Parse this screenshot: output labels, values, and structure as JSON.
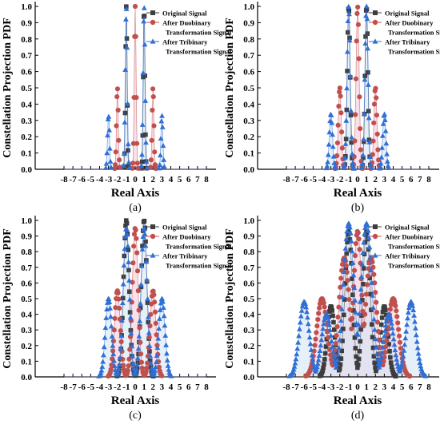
{
  "figure": {
    "panels": [
      "(a)",
      "(b)",
      "(c)",
      "(d)"
    ]
  },
  "styles": {
    "original": {
      "color": "#3d3d3d",
      "marker": "square"
    },
    "duobinary": {
      "color": "#c0504d",
      "marker": "circle",
      "band": "#f4c9d8"
    },
    "tribinary": {
      "color": "#2f6fd6",
      "marker": "triangle",
      "band": "#cfe4f4"
    },
    "axis": "#000000"
  },
  "chart_data": [
    {
      "panel": "(a)",
      "type": "scatter",
      "xlabel": "Real Axis",
      "ylabel": "Constellation Projection PDF",
      "xlim": [
        -8,
        8
      ],
      "ylim": [
        0,
        1.0
      ],
      "xticks": [
        "-8",
        "-7",
        "-6",
        "-5",
        "-4",
        "-3",
        "-2",
        "-1",
        "0",
        "1",
        "2",
        "3",
        "4",
        "5",
        "6",
        "7",
        "8"
      ],
      "yticks": [
        "0.0",
        "0.1",
        "0.2",
        "0.3",
        "0.4",
        "0.5",
        "0.6",
        "0.7",
        "0.8",
        "0.9",
        "1.0"
      ],
      "legend": {
        "position": "top-right",
        "entries": [
          "Original Signal",
          "After Duobinary",
          "Transformation Signal",
          "After Tribinary",
          "Transformation Signal"
        ]
      },
      "series": [
        {
          "name": "Original Signal",
          "style": "original",
          "peaks": [
            [
              -1,
              1.0,
              0.09
            ],
            [
              1,
              1.0,
              0.09
            ]
          ]
        },
        {
          "name": "After Duobinary Transformation Signal",
          "style": "duobinary",
          "peaks": [
            [
              -2,
              0.5,
              0.1
            ],
            [
              0,
              1.0,
              0.1
            ],
            [
              2,
              0.5,
              0.1
            ]
          ]
        },
        {
          "name": "After Tribinary Transformation Signal",
          "style": "tribinary",
          "peaks": [
            [
              -3,
              0.33,
              0.11
            ],
            [
              -1,
              1.0,
              0.11
            ],
            [
              1,
              1.0,
              0.11
            ],
            [
              3,
              0.33,
              0.11
            ]
          ]
        }
      ]
    },
    {
      "panel": "(b)",
      "type": "scatter",
      "xlabel": "Real Axis",
      "ylabel": "Constellation Projection PDF",
      "xlim": [
        -8,
        8
      ],
      "ylim": [
        0,
        1.0
      ],
      "xticks": [
        "-8",
        "-7",
        "-6",
        "-5",
        "-4",
        "-3",
        "-2",
        "-1",
        "0",
        "1",
        "2",
        "3",
        "4",
        "5",
        "6",
        "7",
        "8"
      ],
      "yticks": [
        "0.0",
        "0.1",
        "0.2",
        "0.3",
        "0.4",
        "0.5",
        "0.6",
        "0.7",
        "0.8",
        "0.9",
        "1.0"
      ],
      "legend": {
        "position": "top-right",
        "entries": [
          "Original Signal",
          "After Duobinary",
          "Transformation Signal",
          "After Tribinary",
          "Transformation Signal"
        ]
      },
      "series": [
        {
          "name": "Original Signal",
          "style": "original",
          "peaks": [
            [
              -1,
              1.0,
              0.16
            ],
            [
              1,
              1.0,
              0.16
            ]
          ]
        },
        {
          "name": "After Duobinary Transformation Signal",
          "style": "duobinary",
          "peaks": [
            [
              -2,
              0.5,
              0.17
            ],
            [
              0,
              1.0,
              0.17
            ],
            [
              2,
              0.5,
              0.17
            ]
          ]
        },
        {
          "name": "After Tribinary Transformation Signal",
          "style": "tribinary",
          "peaks": [
            [
              -3,
              0.34,
              0.18
            ],
            [
              -1,
              1.0,
              0.18
            ],
            [
              1,
              1.0,
              0.18
            ],
            [
              3,
              0.34,
              0.18
            ]
          ]
        }
      ]
    },
    {
      "panel": "(c)",
      "type": "scatter",
      "xlabel": "Real Axis",
      "ylabel": "Constellation Projection PDF",
      "xlim": [
        -8,
        8
      ],
      "ylim": [
        0,
        1.0
      ],
      "xticks": [
        "-8",
        "-7",
        "-6",
        "-5",
        "-4",
        "-3",
        "-2",
        "-1",
        "0",
        "1",
        "2",
        "3",
        "4",
        "5",
        "6",
        "7",
        "8"
      ],
      "yticks": [
        "0.0",
        "0.1",
        "0.2",
        "0.3",
        "0.4",
        "0.5",
        "0.6",
        "0.7",
        "0.8",
        "0.9",
        "1.0"
      ],
      "legend": {
        "position": "top-right",
        "entries": [
          "Original Signal",
          "After Duobinary",
          "Transformation Signal",
          "After Tribinary",
          "Transformation Signal"
        ]
      },
      "series": [
        {
          "name": "Original Signal",
          "style": "original",
          "peaks": [
            [
              -1,
              1.0,
              0.32
            ],
            [
              1,
              1.0,
              0.32
            ]
          ]
        },
        {
          "name": "After Duobinary Transformation Signal",
          "style": "duobinary",
          "peaks": [
            [
              -2,
              0.55,
              0.33
            ],
            [
              0,
              0.95,
              0.33
            ],
            [
              2,
              0.55,
              0.33
            ]
          ]
        },
        {
          "name": "After Tribinary Transformation Signal",
          "style": "tribinary",
          "peaks": [
            [
              -3,
              0.5,
              0.35
            ],
            [
              -1,
              0.95,
              0.35
            ],
            [
              1,
              0.95,
              0.35
            ],
            [
              3,
              0.5,
              0.35
            ]
          ]
        }
      ]
    },
    {
      "panel": "(d)",
      "type": "scatter",
      "xlabel": "Real Axis",
      "ylabel": "Constellation Projection PDF",
      "xlim": [
        -8,
        8
      ],
      "ylim": [
        0,
        1.0
      ],
      "xticks": [
        "-8",
        "-7",
        "-6",
        "-5",
        "-4",
        "-3",
        "-2",
        "-1",
        "0",
        "1",
        "2",
        "3",
        "4",
        "5",
        "6",
        "7",
        "8"
      ],
      "yticks": [
        "0.0",
        "0.1",
        "0.2",
        "0.3",
        "0.4",
        "0.5",
        "0.6",
        "0.7",
        "0.8",
        "0.9",
        "1.0"
      ],
      "legend": {
        "position": "top-right",
        "entries": [
          "Original Signal",
          "After Duobinary",
          "Transformation Signal",
          "After Tribinary",
          "Transformation Signal"
        ]
      },
      "series": [
        {
          "name": "Original Signal",
          "style": "original",
          "peaks": [
            [
              -3,
              0.45,
              0.42
            ],
            [
              -1,
              0.93,
              0.42
            ],
            [
              1,
              0.93,
              0.42
            ],
            [
              3,
              0.45,
              0.42
            ]
          ]
        },
        {
          "name": "After Duobinary Transformation Signal",
          "style": "duobinary",
          "peaks": [
            [
              -4,
              0.5,
              0.6
            ],
            [
              -1.5,
              0.76,
              0.6
            ],
            [
              0,
              0.93,
              0.45
            ],
            [
              1.5,
              0.76,
              0.6
            ],
            [
              4,
              0.5,
              0.6
            ]
          ]
        },
        {
          "name": "After Tribinary Transformation Signal",
          "style": "tribinary",
          "peaks": [
            [
              -6,
              0.48,
              0.55
            ],
            [
              -3.5,
              0.4,
              0.55
            ],
            [
              -1,
              0.98,
              0.6
            ],
            [
              1,
              0.98,
              0.6
            ],
            [
              3.5,
              0.4,
              0.55
            ],
            [
              6,
              0.48,
              0.55
            ]
          ]
        }
      ]
    }
  ]
}
